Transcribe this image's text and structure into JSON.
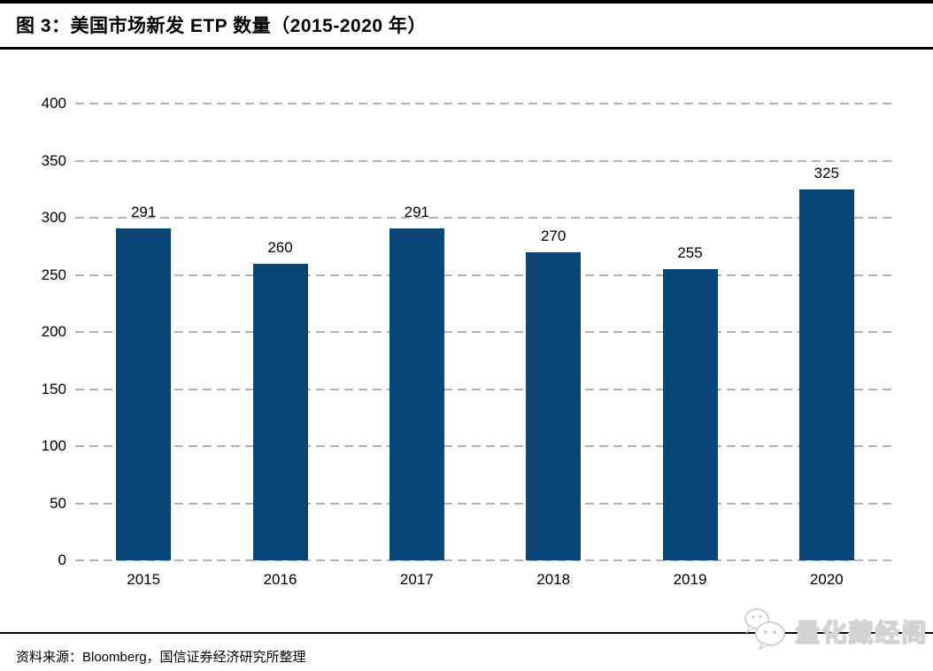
{
  "figure": {
    "title": "图 3：美国市场新发 ETP 数量（2015-2020 年）"
  },
  "chart_data": {
    "type": "bar",
    "title": "图 3：美国市场新发 ETP 数量（2015-2020 年）",
    "categories": [
      "2015",
      "2016",
      "2017",
      "2018",
      "2019",
      "2020"
    ],
    "values": [
      291,
      260,
      291,
      270,
      255,
      325
    ],
    "value_labels_shown": true,
    "xlabel": "",
    "ylabel": "",
    "ylim": [
      0,
      400
    ],
    "yticks": [
      0,
      50,
      100,
      150,
      200,
      250,
      300,
      350,
      400
    ],
    "grid": "horizontal-dashed",
    "legend": "none",
    "bar_color": "#0A4578"
  },
  "footer": {
    "source": "资料来源：Bloomberg，国信证券经济研究所整理",
    "watermark_text": "量化藏经阁",
    "watermark_icon": "wechat-chat-bubbles-icon"
  },
  "colors": {
    "bar": "#0A4578",
    "gridline": "#b3b3b3",
    "rule": "#000000",
    "text": "#000000",
    "watermark": "#e8e8e8"
  }
}
